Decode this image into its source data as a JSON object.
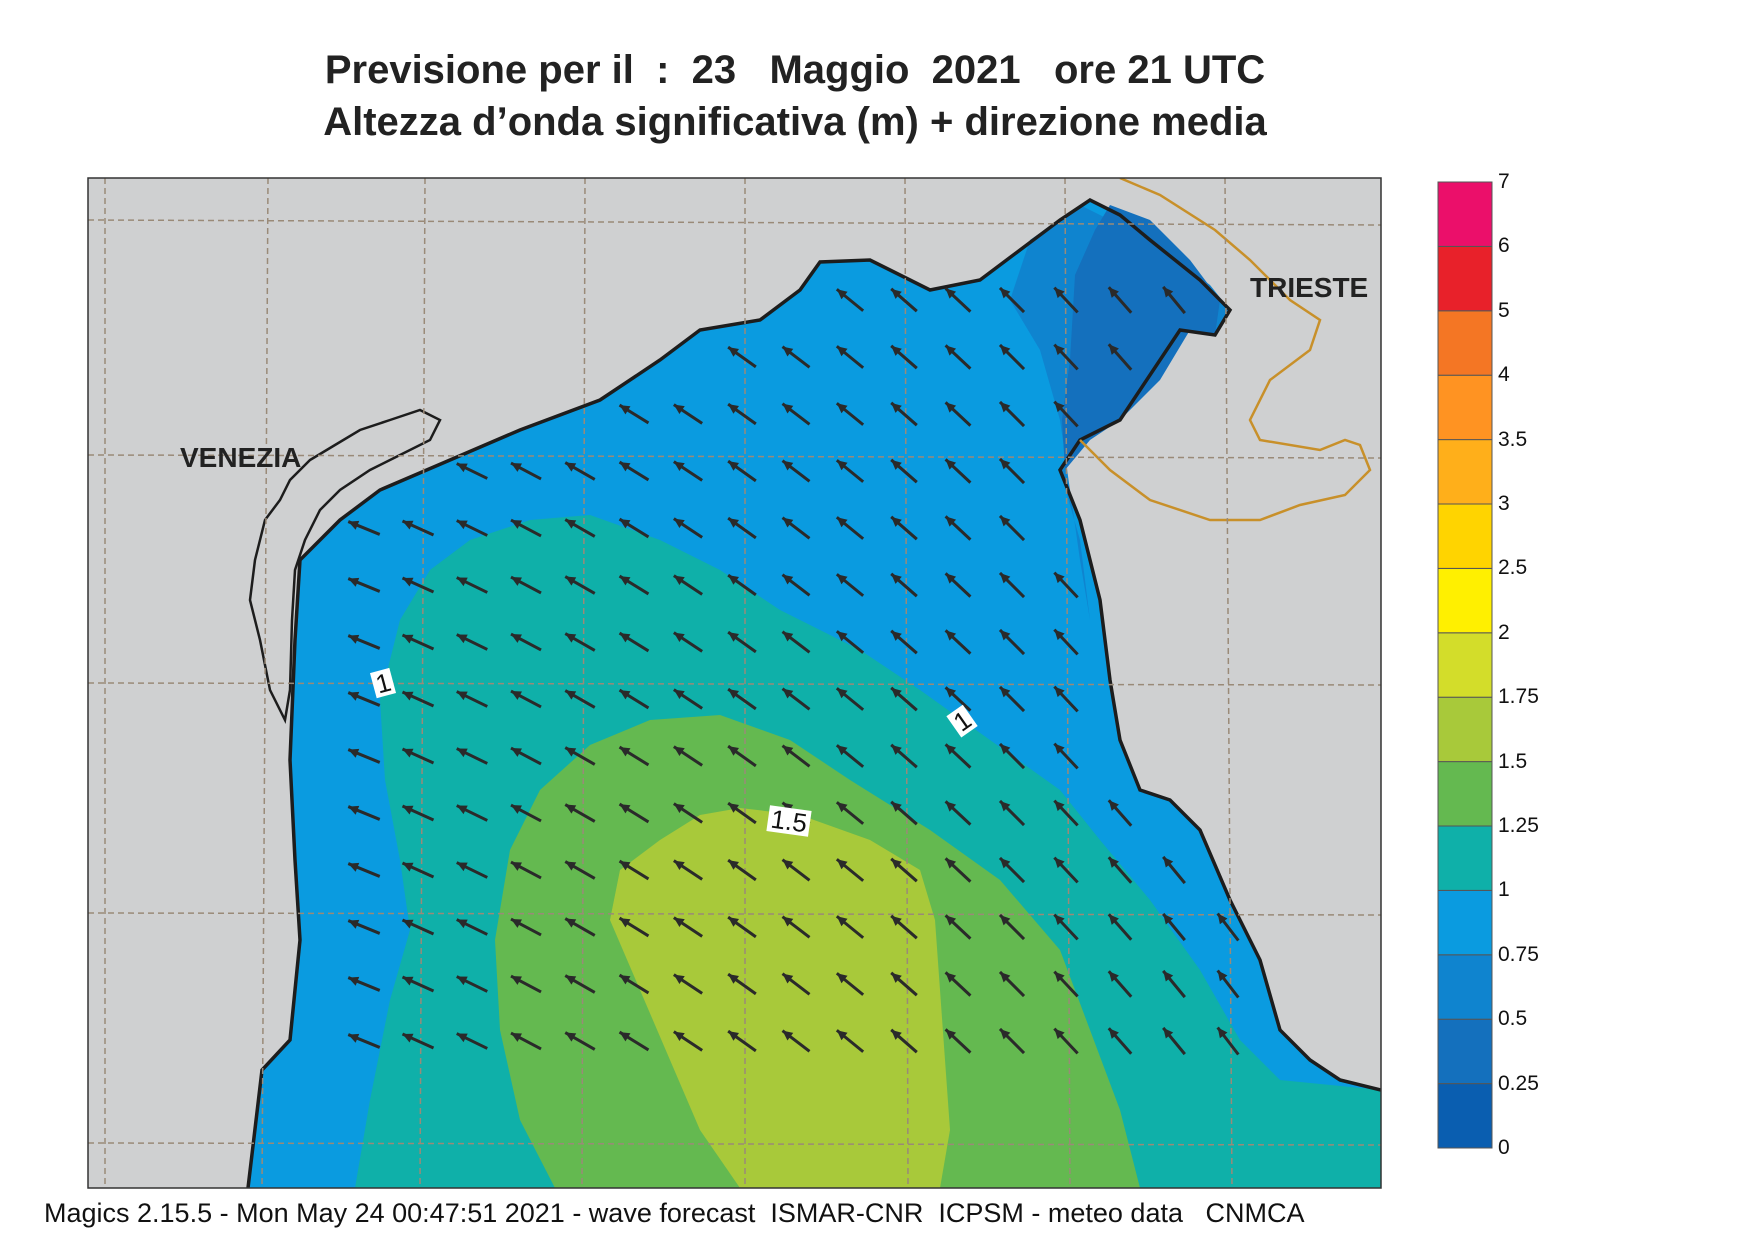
{
  "header": {
    "title_line1": "Previsione per il  :  23   Maggio  2021   ore 21 UTC",
    "title_line2": "Altezza d’onda significativa (m) + direzione media"
  },
  "map": {
    "cities": [
      {
        "name": "VENEZIA"
      },
      {
        "name": "TRIESTE"
      }
    ],
    "contour_labels": [
      "1",
      "1",
      "1.5"
    ],
    "colors": {
      "land": "#cfd0d1",
      "coast": "#1d1d1d",
      "border": "#c8902a",
      "grid": "#9a8a78",
      "arrow": "#2a2a2a"
    },
    "mean_wave_direction": "NW"
  },
  "colorbar": {
    "labels": [
      "0",
      "0.25",
      "0.5",
      "0.75",
      "1",
      "1.25",
      "1.5",
      "1.75",
      "2",
      "2.5",
      "3",
      "3.5",
      "4",
      "5",
      "6",
      "7"
    ],
    "colors": [
      "#0a5eb0",
      "#1470bd",
      "#0f84cf",
      "#0a9be0",
      "#0fb0a9",
      "#64b950",
      "#a8c93a",
      "#d3dd2a",
      "#fff000",
      "#ffd400",
      "#ffaf1a",
      "#ff9322",
      "#f47624",
      "#e8212a",
      "#eb0f6a"
    ]
  },
  "footer": {
    "text": "Magics 2.15.5 - Mon May 24 00:47:51 2021 - wave forecast  ISMAR-CNR  ICPSM - meteo data   CNMCA"
  }
}
